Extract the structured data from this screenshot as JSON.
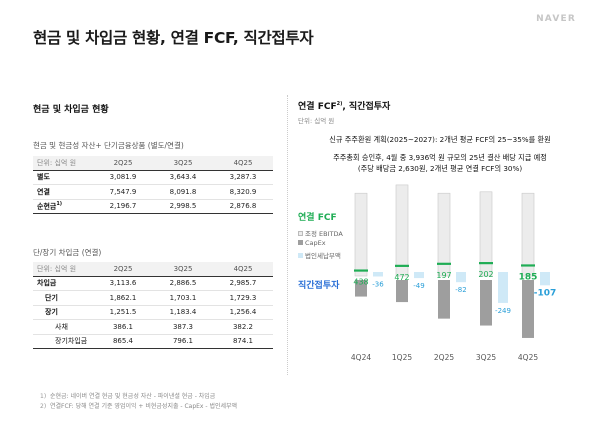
{
  "header": {
    "title": "현금 및 차입금 현황, 연결 FCF, 직간접투자",
    "logo": "NAVER"
  },
  "left": {
    "section_title": "현금 및 차입금 현황",
    "cash_table": {
      "title": "현금 및 현금성 자산+ 단기금융상품 (별도/연결)",
      "unit": "단위: 십억 원",
      "columns": [
        "2Q25",
        "3Q25",
        "4Q25"
      ],
      "rows": [
        {
          "label": "별도",
          "values": [
            "3,081.9",
            "3,643.4",
            "3,287.3"
          ]
        },
        {
          "label": "연결",
          "values": [
            "7,547.9",
            "8,091.8",
            "8,320.9"
          ]
        },
        {
          "label": "순현금",
          "sup": "1)",
          "values": [
            "2,196.7",
            "2,998.5",
            "2,876.8"
          ]
        }
      ]
    },
    "debt_table": {
      "title": "단/장기 차입금 (연결)",
      "unit": "단위: 십억 원",
      "columns": [
        "2Q25",
        "3Q25",
        "4Q25"
      ],
      "rows": [
        {
          "label": "차입금",
          "values": [
            "3,113.6",
            "2,886.5",
            "2,985.7"
          ]
        },
        {
          "label": "단기",
          "values": [
            "1,862.1",
            "1,703.1",
            "1,729.3"
          ]
        },
        {
          "label": "장기",
          "values": [
            "1,251.5",
            "1,183.4",
            "1,256.4"
          ]
        },
        {
          "label": "사채",
          "values": [
            "386.1",
            "387.3",
            "382.2"
          ]
        },
        {
          "label": "장기차입금",
          "values": [
            "865.4",
            "796.1",
            "874.1"
          ]
        }
      ]
    },
    "footnotes": [
      {
        "num": "1)",
        "text": "순현금: 네이버 연결 현금 및 현금성 자산 - 파이낸셜 현금 - 차입금"
      },
      {
        "num": "2)",
        "text": "연결FCF: 당해 연결 기준 영업이익 + 비현금성지출 - CapEx - 법인세부액"
      }
    ]
  },
  "right": {
    "section_title": "연결 FCF",
    "section_title_sup": "2)",
    "section_title_rest": ", 직간접투자",
    "unit": "단위: 십억 원",
    "notice_lines": [
      "신규 주주환원 계획(2025~2027): 2개년 평균 FCF의 25~35%를 환원",
      "주주총회 승인후, 4월 중 3,936억 원 규모의 25년 결산 배당 지급 예정",
      "(주당 배당금 2,630원, 2개년 평균 연결 FCF의 30%)"
    ],
    "legend": {
      "fcf_title": "연결 FCF",
      "ebitda": "조정 EBITDA",
      "capex": "CapEx",
      "tax": "법인세납부액",
      "invest_title": "직간접투자"
    },
    "colors": {
      "fcf": "#1fad55",
      "invest": "#2a9fd8",
      "ebitda": "#ececec",
      "capex": "#9e9e9e",
      "tax": "#cfe9f7"
    }
  },
  "chart_data": {
    "type": "bar",
    "categories": [
      "4Q24",
      "1Q25",
      "2Q25",
      "3Q25",
      "4Q25"
    ],
    "series": [
      {
        "name": "연결 FCF",
        "values": [
          438,
          472,
          197,
          202,
          185
        ]
      },
      {
        "name": "직간접투자",
        "values": [
          -36,
          -49,
          -82,
          -249,
          -107
        ]
      }
    ],
    "value_labels": {
      "fcf": [
        "438",
        "472",
        "197",
        "202",
        "185"
      ],
      "invest": [
        "-36",
        "-49",
        "-82",
        "-249",
        "-107"
      ]
    },
    "components": {
      "ebitda": [
        600,
        660,
        600,
        610,
        600
      ],
      "capex": [
        -120,
        -160,
        -280,
        -330,
        -420
      ],
      "tax": [
        -20,
        -20,
        -20,
        -30,
        -20
      ]
    },
    "legend_position": "left"
  }
}
